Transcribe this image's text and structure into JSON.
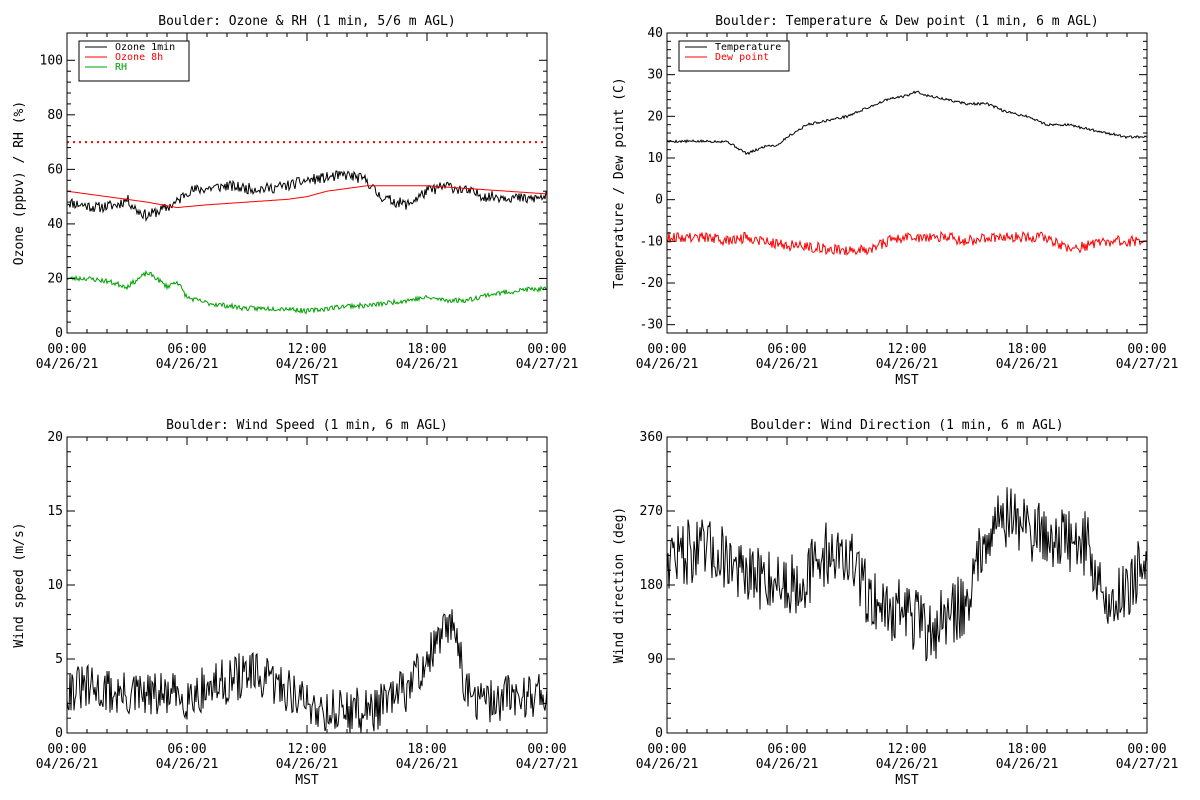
{
  "time_axis": {
    "ticks": [
      {
        "time": "00:00",
        "date": "04/26/21"
      },
      {
        "time": "06:00",
        "date": "04/26/21"
      },
      {
        "time": "12:00",
        "date": "04/26/21"
      },
      {
        "time": "18:00",
        "date": "04/26/21"
      },
      {
        "time": "00:00",
        "date": "04/27/21"
      }
    ],
    "label": "MST"
  },
  "colors": {
    "black": "#000000",
    "red": "#ff0000",
    "green": "#00a000"
  },
  "chart_data": [
    {
      "type": "line",
      "title": "Boulder: Ozone & RH (1 min, 5/6 m AGL)",
      "xlabel": "MST",
      "ylabel": "Ozone (ppbv) / RH (%)",
      "ylim": [
        0,
        110
      ],
      "yticks": [
        0,
        20,
        40,
        60,
        80,
        100
      ],
      "xlim_hours": [
        0,
        24
      ],
      "legend": "top-left",
      "reference_line": {
        "y": 70,
        "style": "dotted",
        "color": "#ff0000"
      },
      "series": [
        {
          "name": "Ozone 1min",
          "color": "#000000",
          "noise": 2.0,
          "seed": 11,
          "x": [
            0,
            1.5,
            2.5,
            3.0,
            3.5,
            4.0,
            5.0,
            5.5,
            6.0,
            7.0,
            8.0,
            9.0,
            10.0,
            11.0,
            12.0,
            13.0,
            14.0,
            15.0,
            15.5,
            16.0,
            17.0,
            18.0,
            19.0,
            20.0,
            21.0,
            22.0,
            23.0,
            24.0
          ],
          "y": [
            48,
            46,
            47,
            49,
            45,
            43,
            46,
            48,
            52,
            53,
            54,
            53,
            53,
            54,
            56,
            57,
            58,
            56,
            51,
            49,
            47,
            52,
            54,
            52,
            50,
            50,
            49,
            50
          ]
        },
        {
          "name": "Ozone 8h",
          "color": "#ff0000",
          "noise": 0,
          "seed": 0,
          "x": [
            0,
            2,
            4,
            5.5,
            7,
            9,
            11,
            12,
            13,
            14,
            15,
            16,
            18,
            20,
            22,
            24
          ],
          "y": [
            52,
            50,
            48,
            46,
            47,
            48,
            49,
            50,
            52,
            53,
            54,
            54,
            54,
            53,
            52,
            51
          ]
        },
        {
          "name": "RH",
          "color": "#00a000",
          "noise": 0.9,
          "seed": 23,
          "x": [
            0,
            1,
            2,
            3,
            4,
            4.3,
            5,
            5.5,
            6,
            7,
            8,
            9,
            10,
            11,
            12,
            13,
            14,
            15,
            16,
            17,
            18,
            19,
            20,
            21,
            22,
            23,
            24
          ],
          "y": [
            20,
            20,
            19,
            17,
            22,
            21,
            17,
            19,
            13,
            11,
            10,
            9,
            9,
            9,
            8,
            9,
            10,
            10,
            11,
            12,
            13,
            12,
            12,
            14,
            15,
            16,
            16
          ]
        }
      ]
    },
    {
      "type": "line",
      "title": "Boulder: Temperature & Dew point (1 min, 6 m AGL)",
      "xlabel": "MST",
      "ylabel": "Temperature / Dew point (C)",
      "ylim": [
        -32,
        40
      ],
      "yticks": [
        -30,
        -20,
        -10,
        0,
        10,
        20,
        30,
        40
      ],
      "xlim_hours": [
        0,
        24
      ],
      "legend": "top-left",
      "series": [
        {
          "name": "Temperature",
          "color": "#000000",
          "noise": 0.3,
          "seed": 5,
          "x": [
            0,
            1,
            2,
            3,
            4,
            4.5,
            5,
            5.5,
            6,
            7,
            8,
            9,
            10,
            11,
            12,
            12.5,
            13,
            14,
            15,
            16,
            17,
            18,
            19,
            20,
            21,
            22,
            23,
            24
          ],
          "y": [
            14,
            14,
            14,
            14,
            11,
            12,
            13,
            13,
            15,
            18,
            19,
            20,
            22,
            24,
            25,
            26,
            25,
            24,
            23,
            23,
            21,
            20,
            18,
            18,
            17,
            16,
            15,
            15
          ]
        },
        {
          "name": "Dew point",
          "color": "#ff0000",
          "noise": 1.3,
          "seed": 9,
          "x": [
            0,
            2,
            3,
            4,
            5,
            6,
            7,
            8,
            9,
            10,
            11,
            12,
            13,
            14,
            15,
            16,
            17,
            18,
            19,
            20,
            21,
            22,
            23,
            24
          ],
          "y": [
            -9,
            -9,
            -10,
            -9,
            -10,
            -11,
            -11,
            -12,
            -12,
            -12,
            -10,
            -9,
            -9,
            -9,
            -10,
            -9,
            -9,
            -9,
            -9,
            -12,
            -11,
            -10,
            -10,
            -10
          ]
        }
      ]
    },
    {
      "type": "line",
      "title": "Boulder: Wind Speed (1 min, 6 m AGL)",
      "xlabel": "MST",
      "ylabel": "Wind speed (m/s)",
      "ylim": [
        0,
        20
      ],
      "yticks": [
        0,
        5,
        10,
        15,
        20
      ],
      "xlim_hours": [
        0,
        24
      ],
      "series": [
        {
          "name": "",
          "color": "#000000",
          "noise": 1.6,
          "seed": 31,
          "min": 0,
          "x": [
            0,
            1,
            2,
            3,
            4,
            5,
            6,
            7,
            8,
            9,
            10,
            11,
            12,
            13,
            14,
            15,
            16,
            17,
            18,
            19,
            19.5,
            20,
            21,
            22,
            23,
            24
          ],
          "y": [
            3,
            3,
            2.8,
            2.5,
            2.5,
            2.5,
            2.5,
            3,
            3.5,
            4,
            3.5,
            3,
            2,
            1.5,
            1.5,
            1.5,
            2,
            3,
            5,
            7,
            7,
            2.5,
            2,
            2.5,
            2.5,
            3
          ]
        }
      ]
    },
    {
      "type": "line",
      "title": "Boulder: Wind Direction (1 min, 6 m AGL)",
      "xlabel": "MST",
      "ylabel": "Wind direction (deg)",
      "ylim": [
        0,
        360
      ],
      "yticks": [
        0,
        90,
        180,
        270,
        360
      ],
      "xlim_hours": [
        0,
        24
      ],
      "series": [
        {
          "name": "",
          "color": "#000000",
          "noise": 40,
          "seed": 47,
          "min": 0,
          "max": 360,
          "x": [
            0,
            1,
            2,
            3,
            3.5,
            4,
            5,
            6,
            7,
            8,
            9,
            10,
            11,
            12,
            13,
            14,
            15,
            16,
            17,
            18,
            19,
            20,
            21,
            22,
            23,
            24
          ],
          "y": [
            215,
            220,
            220,
            215,
            200,
            185,
            190,
            180,
            190,
            220,
            215,
            170,
            150,
            150,
            120,
            140,
            160,
            250,
            265,
            250,
            240,
            235,
            230,
            150,
            180,
            210
          ]
        }
      ]
    }
  ]
}
